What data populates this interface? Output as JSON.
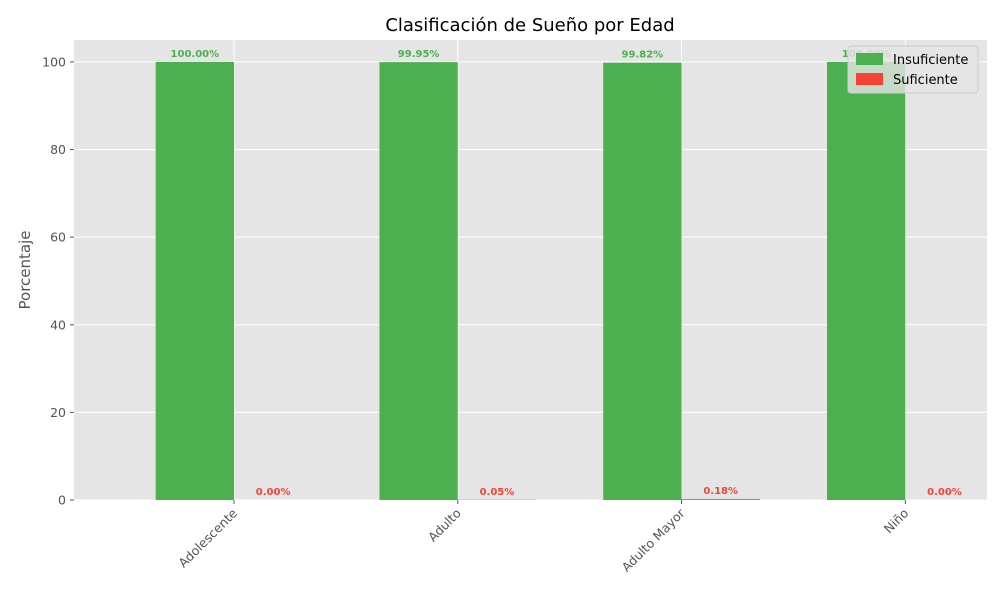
{
  "chart_data": {
    "type": "bar",
    "title": "Clasificación de Sueño por Edad",
    "xlabel": "",
    "ylabel": "Porcentaje",
    "categories": [
      "Adolescente",
      "Adulto",
      "Adulto Mayor",
      "Niño"
    ],
    "series": [
      {
        "name": "Insuficiente",
        "color": "#4caf50",
        "values": [
          100.0,
          99.95,
          99.82,
          100.0
        ],
        "labels": [
          "100.00%",
          "99.95%",
          "99.82%",
          "100.00%"
        ]
      },
      {
        "name": "Suficiente",
        "color": "#f44336",
        "values": [
          0.0,
          0.05,
          0.18,
          0.0
        ],
        "labels": [
          "0.00%",
          "0.05%",
          "0.18%",
          "0.00%"
        ]
      }
    ],
    "ylim": [
      0,
      105
    ],
    "yticks": [
      "0",
      "20",
      "40",
      "60",
      "80",
      "100"
    ],
    "grid": true,
    "legend": "top-right",
    "background": "#e5e5e5"
  }
}
